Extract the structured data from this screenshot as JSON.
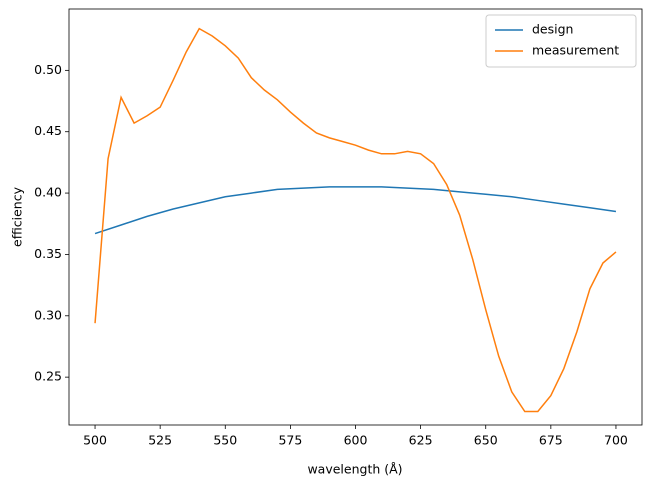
{
  "chart_data": {
    "type": "line",
    "xlabel": "wavelength (Å)",
    "ylabel": "efficiency",
    "xlim": [
      490,
      710
    ],
    "ylim": [
      0.211,
      0.55
    ],
    "xticks": [
      500,
      525,
      550,
      575,
      600,
      625,
      650,
      675,
      700
    ],
    "yticks": [
      0.25,
      {
        "value": 0.3,
        "label": "0.30"
      },
      0.35,
      {
        "value": 0.4,
        "label": "0.40"
      },
      0.45,
      {
        "value": 0.5,
        "label": "0.50"
      }
    ],
    "legend": "upper right",
    "series": [
      {
        "name": "design",
        "color": "#1f77b4",
        "x": [
          500,
          510,
          520,
          530,
          540,
          550,
          560,
          570,
          580,
          590,
          600,
          610,
          620,
          630,
          640,
          650,
          660,
          670,
          680,
          690,
          700
        ],
        "values": [
          0.367,
          0.374,
          0.381,
          0.387,
          0.392,
          0.397,
          0.4,
          0.403,
          0.404,
          0.405,
          0.405,
          0.405,
          0.404,
          0.403,
          0.401,
          0.399,
          0.397,
          0.394,
          0.391,
          0.388,
          0.385
        ]
      },
      {
        "name": "measurement",
        "color": "#ff7f0e",
        "x": [
          500,
          505,
          510,
          515,
          520,
          525,
          530,
          535,
          540,
          545,
          550,
          555,
          560,
          565,
          570,
          575,
          580,
          585,
          590,
          595,
          600,
          605,
          610,
          615,
          620,
          625,
          630,
          635,
          640,
          645,
          650,
          655,
          660,
          665,
          670,
          675,
          680,
          685,
          690,
          695,
          700
        ],
        "values": [
          0.294,
          0.428,
          0.478,
          0.457,
          0.463,
          0.47,
          0.492,
          0.515,
          0.534,
          0.528,
          0.52,
          0.51,
          0.494,
          0.484,
          0.476,
          0.466,
          0.457,
          0.449,
          0.445,
          0.442,
          0.439,
          0.435,
          0.432,
          0.432,
          0.434,
          0.432,
          0.424,
          0.407,
          0.382,
          0.346,
          0.305,
          0.267,
          0.238,
          0.222,
          0.222,
          0.235,
          0.257,
          0.287,
          0.322,
          0.343,
          0.352
        ]
      }
    ]
  }
}
